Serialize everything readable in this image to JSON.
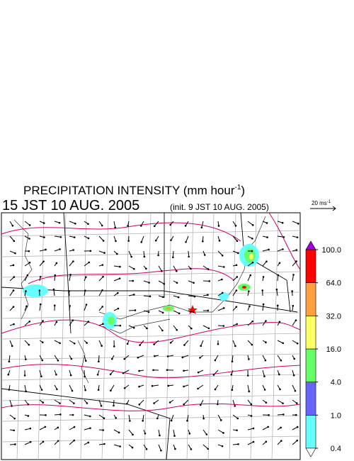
{
  "title": {
    "text": "PRECIPITATION INTENSITY (mm hour",
    "sup": "-1",
    "close": ")"
  },
  "subtitle": {
    "time": "15 JST 10 AUG. 2005",
    "init": "(init. 9 JST 10 AUG. 2005)"
  },
  "wind_scale": {
    "text": "20 ms",
    "sup": "-1"
  },
  "colorbar": {
    "levels": [
      {
        "value": 0.4,
        "label": "0.4"
      },
      {
        "value": 1,
        "label": "1.0"
      },
      {
        "value": 4,
        "label": "4.0"
      },
      {
        "value": 16,
        "label": "16.0"
      },
      {
        "value": 32,
        "label": "32.0"
      },
      {
        "value": 64,
        "label": "64.0"
      },
      {
        "value": 100,
        "label": "100.0"
      }
    ],
    "colors": [
      "#66ffff",
      "#6666ff",
      "#66ff66",
      "#ffff66",
      "#ffa040",
      "#ff0000"
    ],
    "over_color": "#a000e0",
    "under_color": "#ffffff"
  }
}
